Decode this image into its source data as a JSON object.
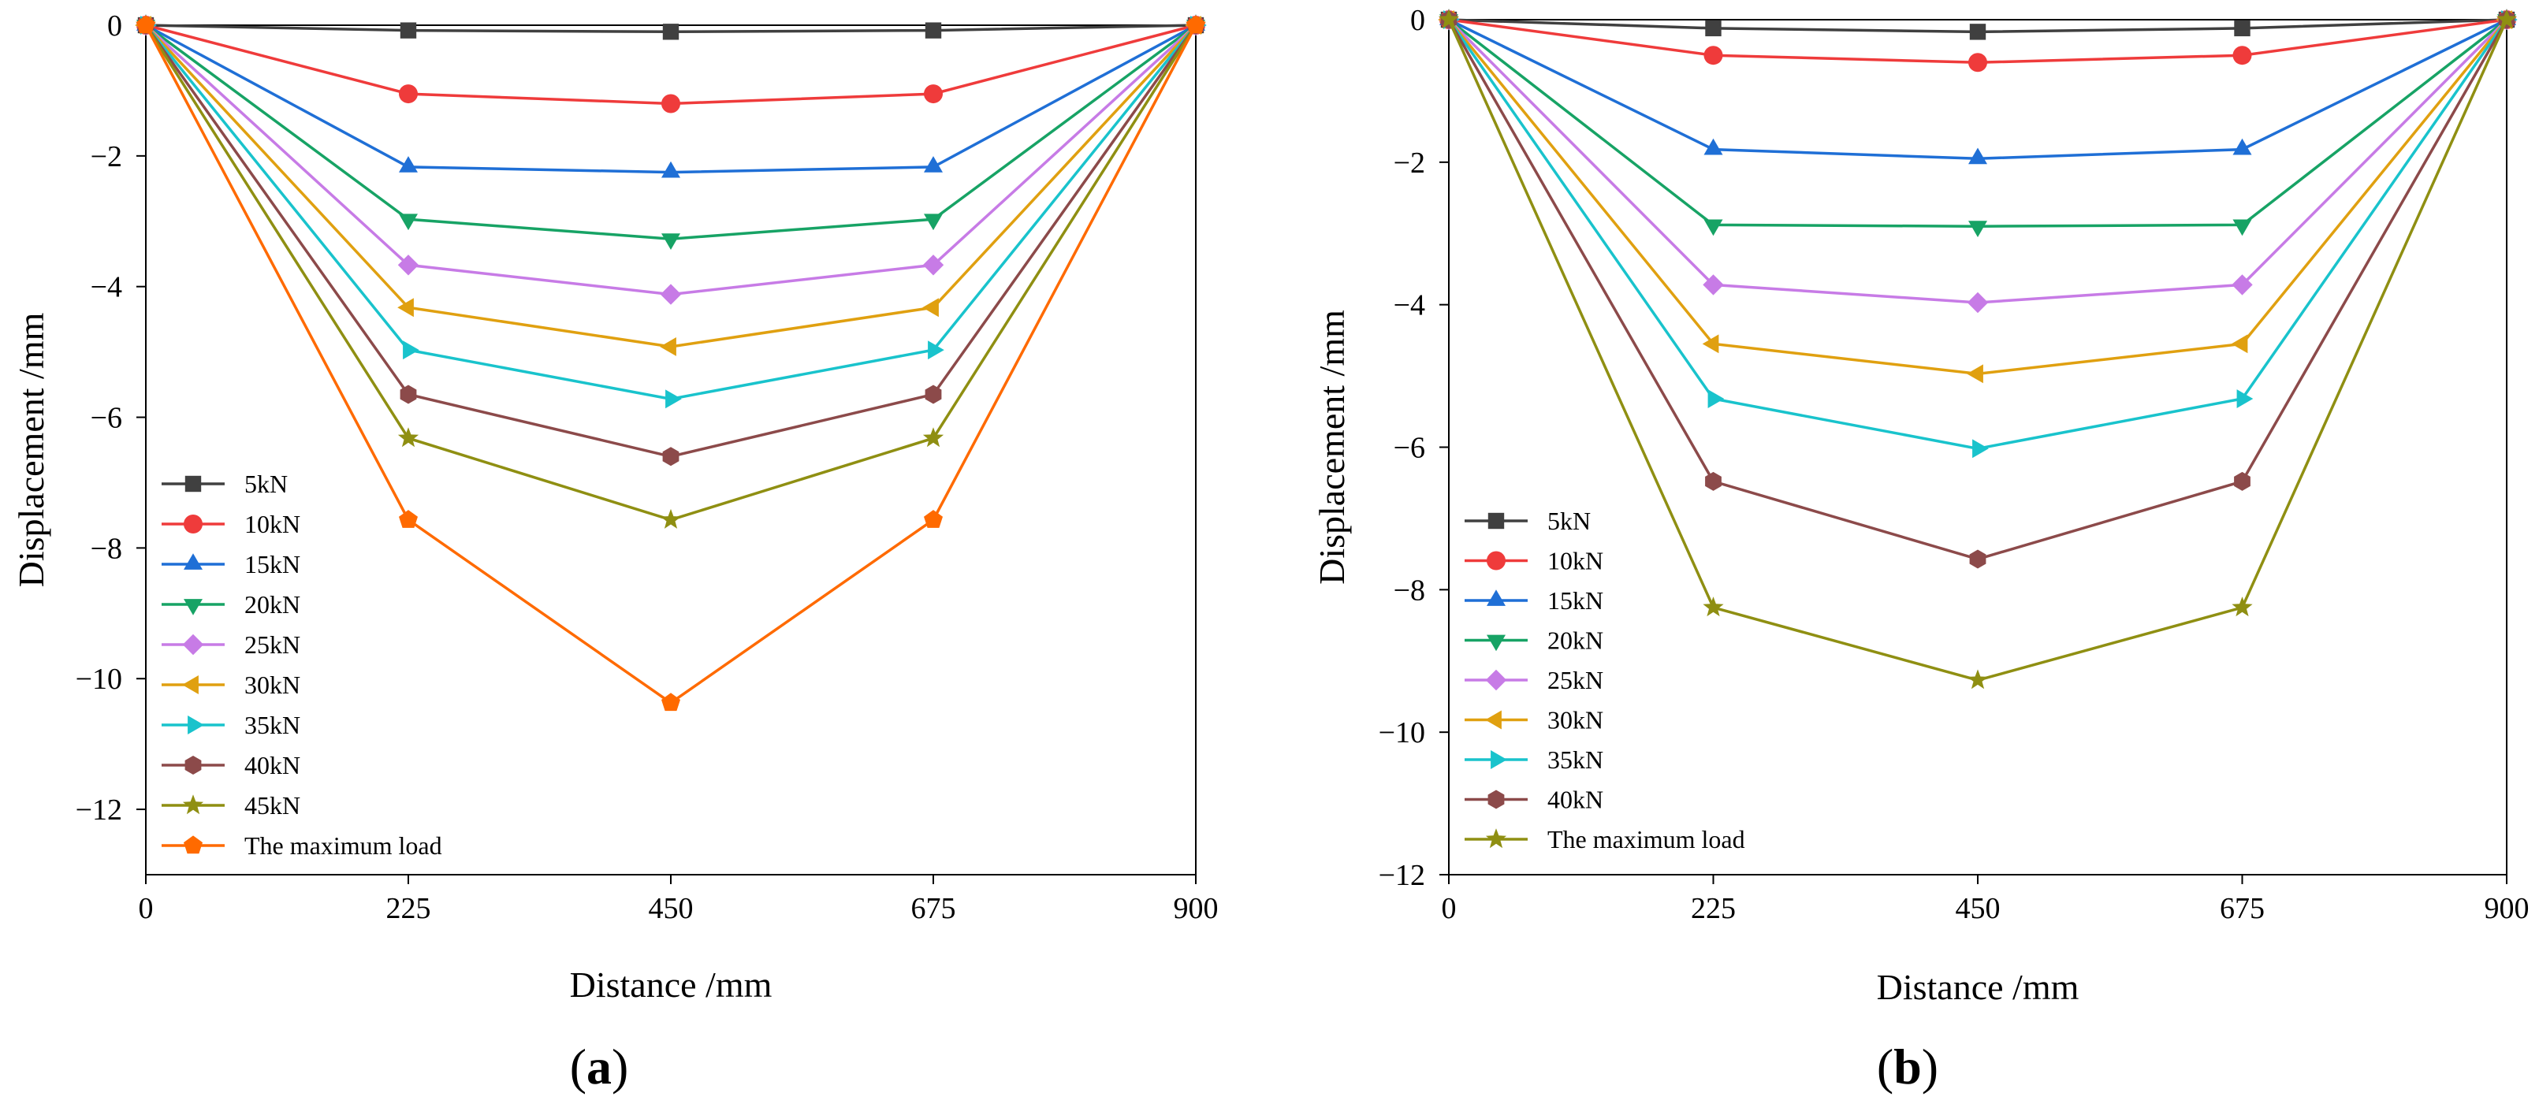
{
  "chart_data": [
    {
      "type": "line",
      "panel_label": "a",
      "xlabel": "Distance /mm",
      "ylabel": "Displacement /mm",
      "x": [
        0,
        225,
        450,
        675,
        900
      ],
      "xticks": [
        "0",
        "225",
        "450",
        "675",
        "900"
      ],
      "xlim": [
        0,
        900
      ],
      "ylim": [
        -13,
        0
      ],
      "yticks": [
        0,
        -2,
        -4,
        -6,
        -8,
        -10,
        -12
      ],
      "ytick_labels": [
        "0",
        "−2",
        "−4",
        "−6",
        "−8",
        "−10",
        "−12"
      ],
      "legend_position": "bottom-left",
      "series": [
        {
          "name": "5kN",
          "color": "#404040",
          "marker": "square",
          "values": [
            0,
            -0.08,
            -0.1,
            -0.08,
            0
          ]
        },
        {
          "name": "10kN",
          "color": "#ef3b3b",
          "marker": "circle",
          "values": [
            0,
            -1.05,
            -1.2,
            -1.05,
            0
          ]
        },
        {
          "name": "15kN",
          "color": "#1f6fd6",
          "marker": "triangle-up",
          "values": [
            0,
            -2.17,
            -2.25,
            -2.17,
            0
          ]
        },
        {
          "name": "20kN",
          "color": "#17a365",
          "marker": "triangle-down",
          "values": [
            0,
            -2.97,
            -3.27,
            -2.97,
            0
          ]
        },
        {
          "name": "25kN",
          "color": "#c77be6",
          "marker": "diamond",
          "values": [
            0,
            -3.67,
            -4.12,
            -3.67,
            0
          ]
        },
        {
          "name": "30kN",
          "color": "#e0a010",
          "marker": "triangle-left",
          "values": [
            0,
            -4.32,
            -4.92,
            -4.32,
            0
          ]
        },
        {
          "name": "35kN",
          "color": "#19c3cc",
          "marker": "triangle-right",
          "values": [
            0,
            -4.97,
            -5.72,
            -4.97,
            0
          ]
        },
        {
          "name": "40kN",
          "color": "#8c4a4a",
          "marker": "hexagon",
          "values": [
            0,
            -5.65,
            -6.6,
            -5.65,
            0
          ]
        },
        {
          "name": "45kN",
          "color": "#8f8f12",
          "marker": "star",
          "values": [
            0,
            -6.32,
            -7.57,
            -6.32,
            0
          ]
        },
        {
          "name": "The maximum load",
          "color": "#ff6a00",
          "marker": "pentagon",
          "values": [
            0,
            -7.57,
            -10.37,
            -7.57,
            0
          ]
        }
      ]
    },
    {
      "type": "line",
      "panel_label": "b",
      "xlabel": "Distance /mm",
      "ylabel": "Displacement /mm",
      "x": [
        0,
        225,
        450,
        675,
        900
      ],
      "xticks": [
        "0",
        "225",
        "450",
        "675",
        "900"
      ],
      "xlim": [
        0,
        900
      ],
      "ylim": [
        -12,
        0
      ],
      "yticks": [
        0,
        -2,
        -4,
        -6,
        -8,
        -10,
        -12
      ],
      "ytick_labels": [
        "0",
        "−2",
        "−4",
        "−6",
        "−8",
        "−10",
        "−12"
      ],
      "legend_position": "bottom-left",
      "series": [
        {
          "name": "5kN",
          "color": "#404040",
          "marker": "square",
          "values": [
            0,
            -0.12,
            -0.17,
            -0.12,
            0
          ]
        },
        {
          "name": "10kN",
          "color": "#ef3b3b",
          "marker": "circle",
          "values": [
            0,
            -0.5,
            -0.6,
            -0.5,
            0
          ]
        },
        {
          "name": "15kN",
          "color": "#1f6fd6",
          "marker": "triangle-up",
          "values": [
            0,
            -1.82,
            -1.95,
            -1.82,
            0
          ]
        },
        {
          "name": "20kN",
          "color": "#17a365",
          "marker": "triangle-down",
          "values": [
            0,
            -2.88,
            -2.9,
            -2.88,
            0
          ]
        },
        {
          "name": "25kN",
          "color": "#c77be6",
          "marker": "diamond",
          "values": [
            0,
            -3.72,
            -3.97,
            -3.72,
            0
          ]
        },
        {
          "name": "30kN",
          "color": "#e0a010",
          "marker": "triangle-left",
          "values": [
            0,
            -4.55,
            -4.97,
            -4.55,
            0
          ]
        },
        {
          "name": "35kN",
          "color": "#19c3cc",
          "marker": "triangle-right",
          "values": [
            0,
            -5.32,
            -6.02,
            -5.32,
            0
          ]
        },
        {
          "name": "40kN",
          "color": "#8c4a4a",
          "marker": "hexagon",
          "values": [
            0,
            -6.48,
            -7.57,
            -6.48,
            0
          ]
        },
        {
          "name": "The maximum load",
          "color": "#8f8f12",
          "marker": "star",
          "values": [
            0,
            -8.25,
            -9.27,
            -8.25,
            0
          ]
        }
      ]
    }
  ]
}
